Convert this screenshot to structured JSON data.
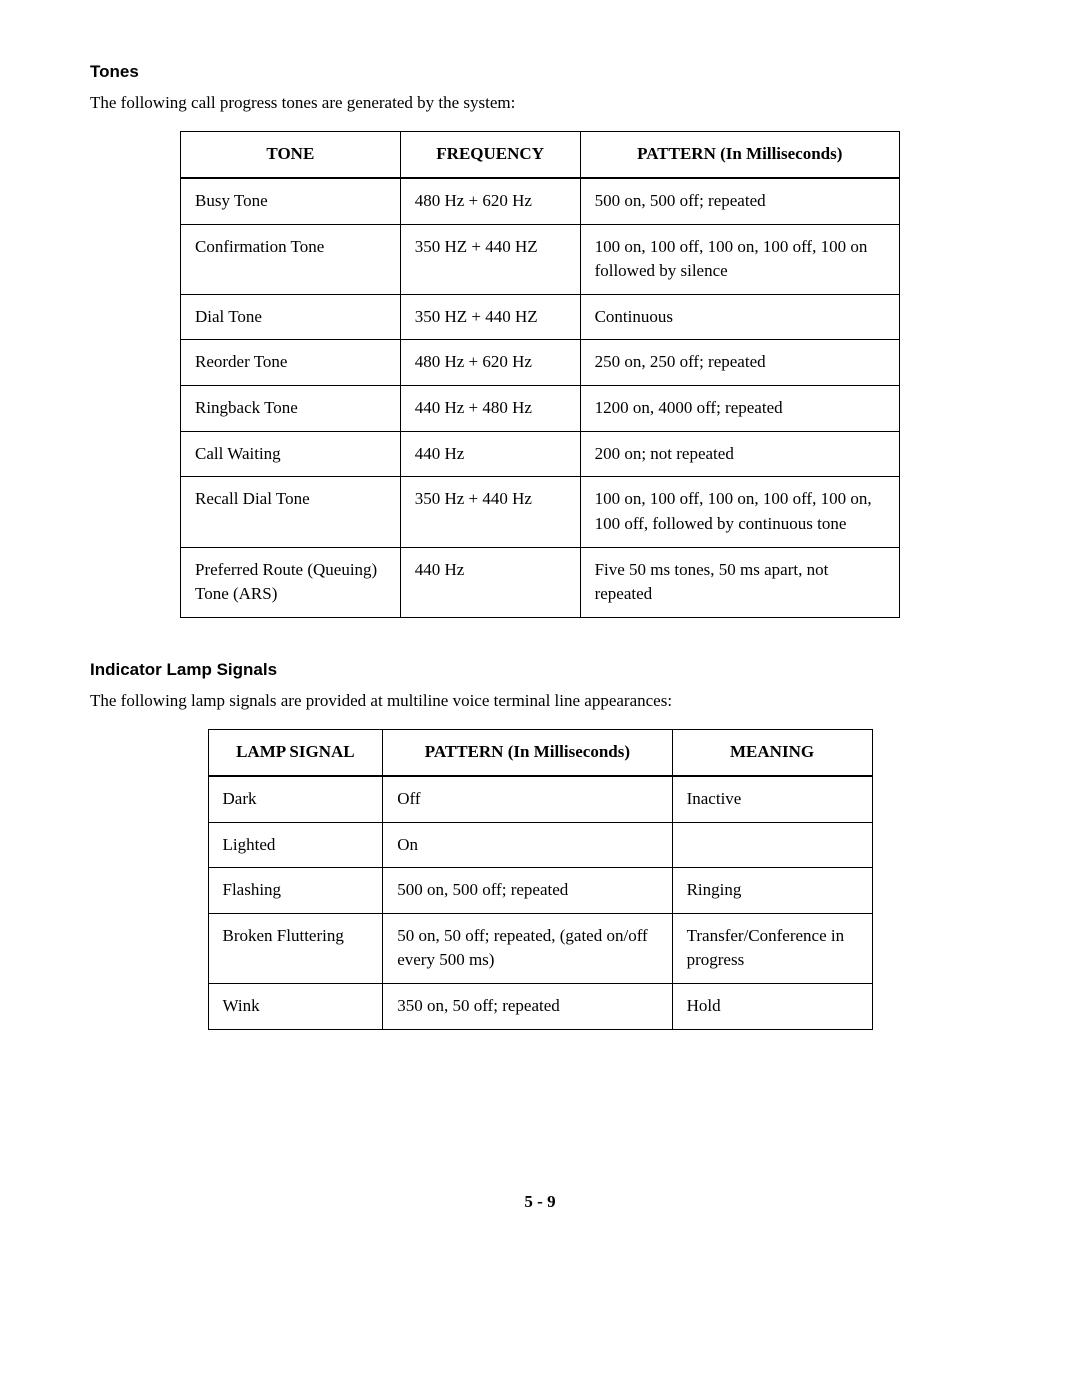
{
  "tones": {
    "heading": "Tones",
    "intro": "The following call progress tones are generated by the system:",
    "headers": [
      "TONE",
      "FREQUENCY",
      "PATTERN (In Milliseconds)"
    ],
    "rows": [
      [
        "Busy Tone",
        "480 Hz + 620 Hz",
        "500 on, 500 off; repeated"
      ],
      [
        "Confirmation Tone",
        "350 HZ + 440 HZ",
        "100 on, 100 off, 100 on, 100 off, 100 on followed by silence"
      ],
      [
        "Dial Tone",
        "350 HZ + 440 HZ",
        "Continuous"
      ],
      [
        "Reorder Tone",
        "480 Hz + 620 Hz",
        "250 on, 250 off; repeated"
      ],
      [
        "Ringback Tone",
        "440 Hz + 480 Hz",
        "1200 on, 4000 off; repeated"
      ],
      [
        "Call Waiting",
        "440 Hz",
        "200 on; not repeated"
      ],
      [
        "Recall Dial Tone",
        "350 Hz + 440 Hz",
        "100 on, 100 off, 100 on, 100 off, 100 on, 100 off, followed by continuous tone"
      ],
      [
        "Preferred Route (Queuing) Tone (ARS)",
        "440 Hz",
        "Five 50 ms tones, 50 ms apart, not repeated"
      ]
    ]
  },
  "lamp": {
    "heading": "Indicator Lamp Signals",
    "intro": "The following lamp signals are provided at multiline voice terminal line appearances:",
    "headers": [
      "LAMP SIGNAL",
      "PATTERN (In Milliseconds)",
      "MEANING"
    ],
    "rows": [
      [
        "Dark",
        "Off",
        "Inactive"
      ],
      [
        "Lighted",
        "On",
        ""
      ],
      [
        "Flashing",
        "500 on, 500 off; repeated",
        "Ringing"
      ],
      [
        "Broken Fluttering",
        "50 on, 50 off; repeated, (gated on/off every 500 ms)",
        "Transfer/Conference in progress"
      ],
      [
        "Wink",
        "350 on, 50 off; repeated",
        "Hold"
      ]
    ]
  },
  "page_number": "5 - 9"
}
